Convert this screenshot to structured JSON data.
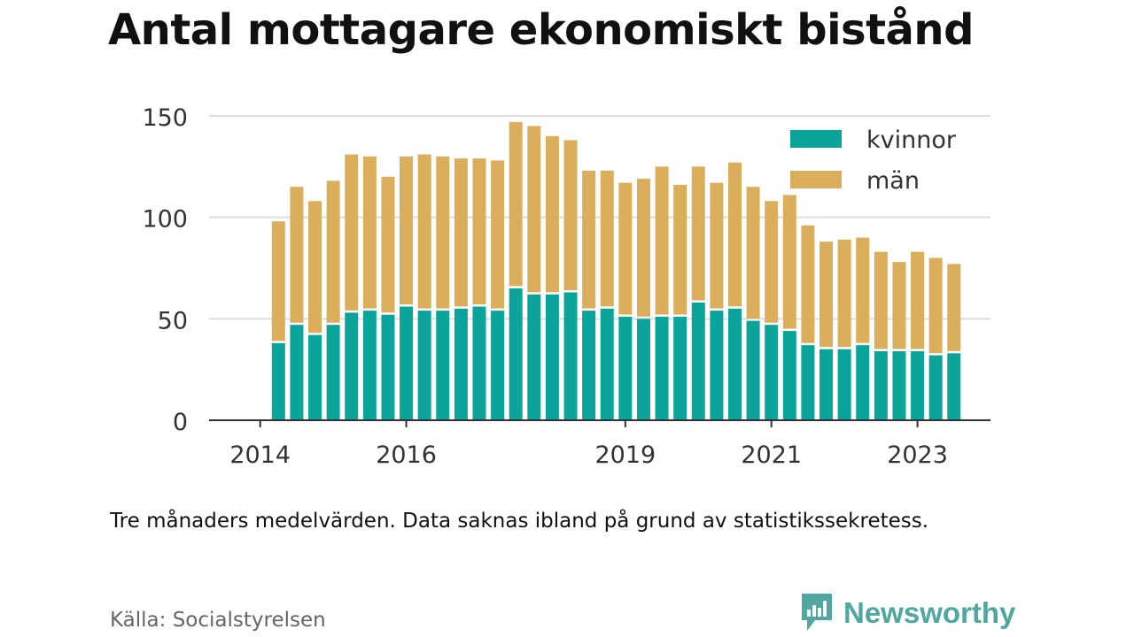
{
  "title": "Antal mottagare ekonomiskt bistånd",
  "note": "Tre månaders medelvärden. Data saknas ibland på grund av statistikssekretess.",
  "source": "Källa: Socialstyrelsen",
  "brand": "Newsworthy",
  "colors": {
    "kvinnor": "#0ba49a",
    "man": "#dbae5b",
    "axis": "#333333",
    "grid": "#dddddd",
    "text": "#333333"
  },
  "chart_data": {
    "type": "bar",
    "stacked": true,
    "x_tick_labels": [
      "2014",
      "2016",
      "2019",
      "2021",
      "2023"
    ],
    "x_tick_positions": [
      2014,
      2016,
      2019,
      2021,
      2023
    ],
    "xlim": [
      2013.3,
      2024.0
    ],
    "ylim": [
      0,
      160
    ],
    "y_ticks": [
      0,
      50,
      100,
      150
    ],
    "grid": true,
    "legend_position": "top-right",
    "x": [
      2014.25,
      2014.5,
      2014.75,
      2015.0,
      2015.25,
      2015.5,
      2015.75,
      2016.0,
      2016.25,
      2016.5,
      2016.75,
      2017.0,
      2017.25,
      2017.5,
      2017.75,
      2018.0,
      2018.25,
      2018.5,
      2018.75,
      2019.0,
      2019.25,
      2019.5,
      2019.75,
      2020.0,
      2020.25,
      2020.5,
      2020.75,
      2021.0,
      2021.25,
      2021.5,
      2021.75,
      2022.0,
      2022.25,
      2022.5,
      2022.75,
      2023.0,
      2023.25,
      2023.5
    ],
    "series": [
      {
        "name": "kvinnor",
        "values": [
          38,
          47,
          42,
          47,
          53,
          54,
          52,
          56,
          54,
          54,
          55,
          56,
          54,
          65,
          62,
          62,
          63,
          54,
          55,
          51,
          50,
          51,
          51,
          58,
          54,
          55,
          49,
          47,
          44,
          37,
          35,
          35,
          37,
          34,
          34,
          34,
          32,
          33
        ]
      },
      {
        "name": "män",
        "values": [
          60,
          68,
          66,
          71,
          78,
          76,
          68,
          74,
          77,
          76,
          74,
          73,
          74,
          82,
          83,
          78,
          75,
          69,
          68,
          66,
          69,
          74,
          65,
          67,
          63,
          72,
          66,
          61,
          67,
          59,
          53,
          54,
          53,
          49,
          44,
          49,
          48,
          44
        ]
      }
    ]
  }
}
